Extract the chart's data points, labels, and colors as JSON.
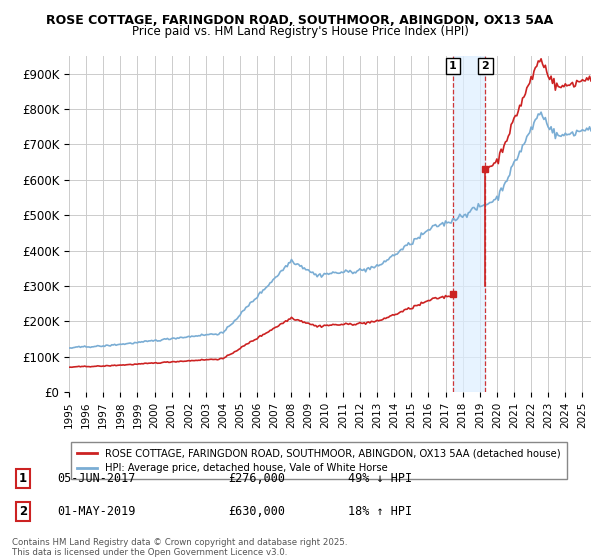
{
  "title_line1": "ROSE COTTAGE, FARINGDON ROAD, SOUTHMOOR, ABINGDON, OX13 5AA",
  "title_line2": "Price paid vs. HM Land Registry's House Price Index (HPI)",
  "ylim": [
    0,
    950000
  ],
  "yticks": [
    0,
    100000,
    200000,
    300000,
    400000,
    500000,
    600000,
    700000,
    800000,
    900000
  ],
  "ytick_labels": [
    "£0",
    "£100K",
    "£200K",
    "£300K",
    "£400K",
    "£500K",
    "£600K",
    "£700K",
    "£800K",
    "£900K"
  ],
  "hpi_color": "#7aadd4",
  "price_color": "#cc2222",
  "t1_year": 2017.42,
  "t2_year": 2019.33,
  "price1": 276000,
  "price2": 630000,
  "transaction1": {
    "date": "05-JUN-2017",
    "price": 276000,
    "label": "1",
    "hpi_diff": "49% ↓ HPI"
  },
  "transaction2": {
    "date": "01-MAY-2019",
    "price": 630000,
    "label": "2",
    "hpi_diff": "18% ↑ HPI"
  },
  "legend_label1": "ROSE COTTAGE, FARINGDON ROAD, SOUTHMOOR, ABINGDON, OX13 5AA (detached house)",
  "legend_label2": "HPI: Average price, detached house, Vale of White Horse",
  "footnote": "Contains HM Land Registry data © Crown copyright and database right 2025.\nThis data is licensed under the Open Government Licence v3.0.",
  "bg_color": "#ffffff",
  "grid_color": "#cccccc",
  "vline_color": "#cc2222",
  "shade_color": "#ddeeff",
  "xlim_left": 1995,
  "xlim_right": 2025.5
}
